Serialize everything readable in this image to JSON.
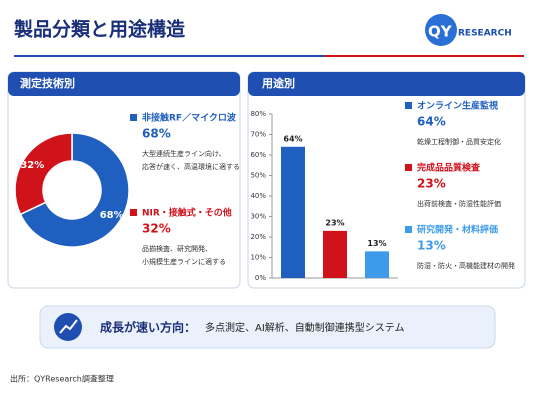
{
  "header": {
    "title": "製品分類と用途構造",
    "logo_mark": "QY",
    "logo_text": "RESEARCH"
  },
  "chart_data": [
    {
      "type": "donut",
      "title": "測定技術別",
      "categories": [
        "非接触RF／マイクロ波",
        "NIR・接触式・その他"
      ],
      "values": [
        68,
        32
      ],
      "value_labels": [
        "68%",
        "32%"
      ],
      "colors": [
        "#1f5fbf",
        "#d0121b"
      ],
      "descriptions": [
        [
          "大型連続生産ライン向け、",
          "応答が速く、高温環境に適する"
        ],
        [
          "品揃検査、研究開発、",
          "小規模生産ラインに適する"
        ]
      ]
    },
    {
      "type": "bar",
      "title": "用途別",
      "categories": [
        "オンライン生産監視",
        "完成品品質検査",
        "研究開発・材料評価"
      ],
      "values": [
        64,
        23,
        13
      ],
      "value_labels": [
        "64%",
        "23%",
        "13%"
      ],
      "colors": [
        "#1f5fbf",
        "#d0121b",
        "#3d9be9"
      ],
      "descriptions": [
        [
          "乾燥工程制御・品質安定化"
        ],
        [
          "出荷前検査・防湿性能評価"
        ],
        [
          "防湿・防火・高機能建材の開発"
        ]
      ],
      "ylim": [
        0,
        80
      ],
      "yticks": [
        {
          "value": 0,
          "label": "0%"
        },
        {
          "value": 10,
          "label": "10%"
        },
        {
          "value": 20,
          "label": "20%"
        },
        {
          "value": 30,
          "label": "30%"
        },
        {
          "value": 40,
          "label": "40%"
        },
        {
          "value": 50,
          "label": "50%"
        },
        {
          "value": 60,
          "label": "60%"
        },
        {
          "value": 70,
          "label": "70%"
        },
        {
          "value": 80,
          "label": "80%"
        }
      ],
      "grid": false
    }
  ],
  "banner": {
    "label": "成長が速い方向：",
    "text": "多点測定、AI解析、自動制御連携型システム"
  },
  "footer": "出所：QYResearch調査整理"
}
